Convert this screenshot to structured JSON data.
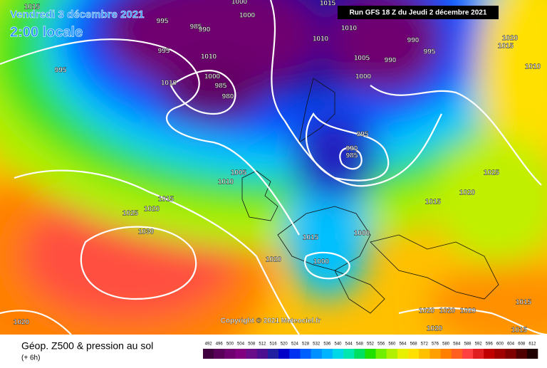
{
  "header": {
    "valid_time": "Vendredi 3 décembre 2021",
    "local_time": "2:00 locale",
    "run": "Run GFS 18 Z du Jeudi 2 décembre 2021"
  },
  "copyright": "Copyright © 2021 Meteociel.fr",
  "footer": {
    "title": "Géop. Z500 & pression au sol",
    "lead": "(+ 6h)"
  },
  "isobar_labels": [
    "1015",
    "995",
    "995",
    "985",
    "990",
    "1000",
    "1000",
    "1015",
    "1010",
    "1010",
    "1005",
    "1000",
    "990",
    "990",
    "995",
    "1020",
    "1015",
    "1010",
    "995",
    "1010",
    "1010",
    "1000",
    "985",
    "980",
    "995",
    "990",
    "985",
    "1005",
    "1010",
    "1025",
    "1020",
    "1015",
    "1015",
    "1020",
    "1025",
    "1030",
    "1015",
    "1000",
    "1020",
    "1000",
    "1020",
    "1020",
    "1020",
    "1015",
    "1020",
    "1015",
    "1020"
  ],
  "colorbar": {
    "ticks": [
      492,
      496,
      500,
      504,
      508,
      512,
      516,
      520,
      524,
      528,
      532,
      536,
      540,
      544,
      548,
      552,
      556,
      560,
      564,
      568,
      572,
      576,
      580,
      584,
      588,
      592,
      596,
      600,
      604,
      608,
      612
    ],
    "colors": [
      "#400040",
      "#5a005a",
      "#700070",
      "#800080",
      "#6a0d8a",
      "#4b0f90",
      "#2020a0",
      "#0000c8",
      "#0030f0",
      "#0060ff",
      "#0090ff",
      "#00b4ff",
      "#00d8e8",
      "#00e8b0",
      "#00e060",
      "#20e000",
      "#70f000",
      "#b0f000",
      "#e8f000",
      "#ffe000",
      "#ffc000",
      "#ffa000",
      "#ff8000",
      "#ff6020",
      "#ff4040",
      "#e02020",
      "#c00000",
      "#a00000",
      "#800000",
      "#500000",
      "#200000"
    ]
  }
}
